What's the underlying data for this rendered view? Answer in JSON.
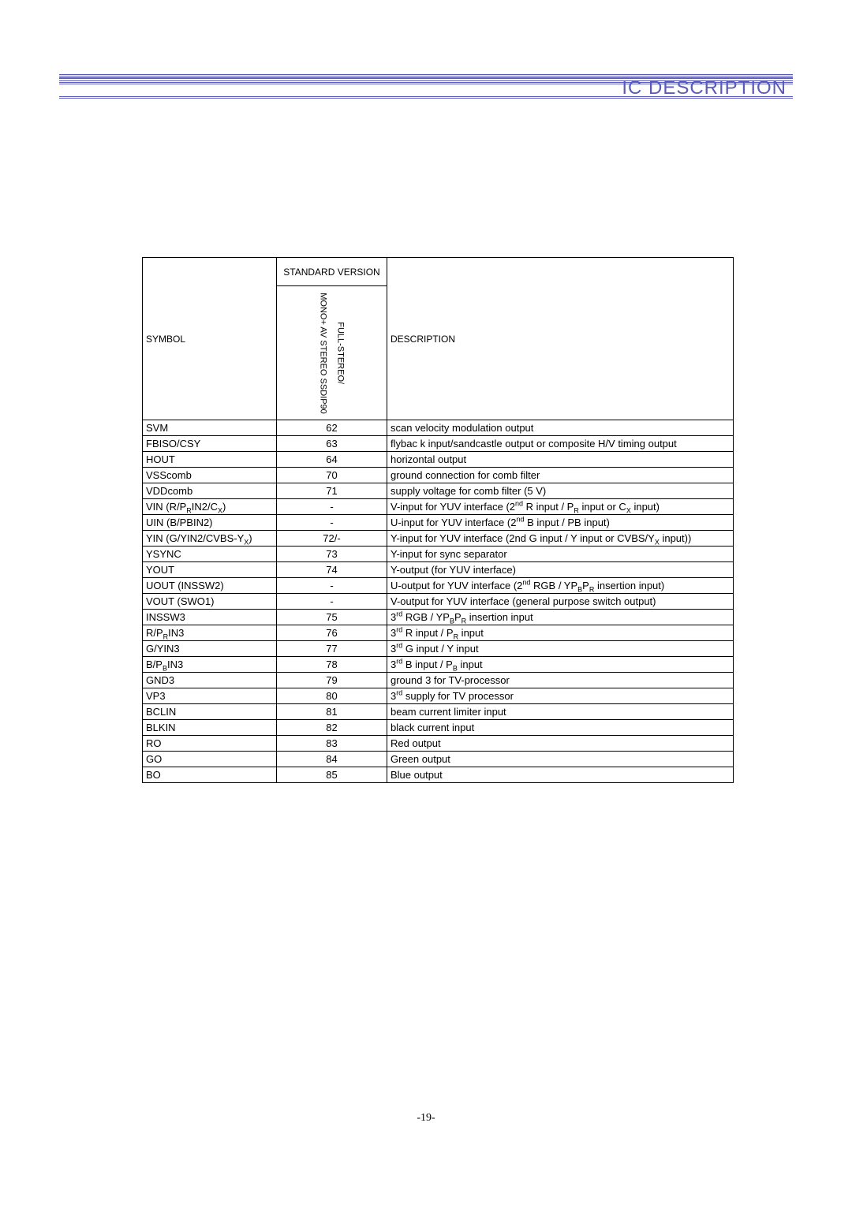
{
  "header": {
    "title": "IC DESCRIPTION",
    "line_color": "#5a5ab8"
  },
  "table": {
    "columns": {
      "symbol": "SYMBOL",
      "standard_version": "STANDARD VERSION",
      "pin_sub": "MONO+ AV STEREO SSDIP90 / FULL-STEREO",
      "pin_sub_a": "MONO+ AV STEREO SSDIP90",
      "pin_sub_b": "FULL-STEREO/",
      "description": "DESCRIPTION"
    },
    "rows": [
      {
        "symbol": "SVM",
        "pin": "62",
        "desc": "scan velocity modulation output"
      },
      {
        "symbol": "FBISO/CSY",
        "pin": "63",
        "desc": "ﬂybac k input/sandcastle output or composite H/V timing output",
        "tall": true
      },
      {
        "symbol": "HOUT",
        "pin": "64",
        "desc": "horizontal output"
      },
      {
        "symbol": "VSScomb",
        "pin": "70",
        "desc": "ground connection for comb ﬁlter"
      },
      {
        "symbol": "VDDcomb",
        "pin": "71",
        "desc": "supply voltage for comb ﬁlter (5 V)"
      },
      {
        "symbol_html": "VIN (R/P<sub>R</sub>IN2/C<sub>X</sub>)",
        "pin": "-",
        "desc_html": "V-input for YUV interface (2<sup>nd</sup> R input / P<sub>R</sub> input or C<sub>X</sub> input)",
        "tall": true
      },
      {
        "symbol": "UIN (B/PBIN2)",
        "pin": "-",
        "desc_html": "U-input for YUV interface (2<sup>nd</sup> B input / PB input)"
      },
      {
        "symbol_html": "YIN (G/YIN2/CVBS-Y<sub>X</sub>)",
        "pin": "72/-",
        "desc_html": "Y-input for YUV interface (2nd G input / Y input or CVBS/Y<sub>X</sub> input))",
        "tall": true
      },
      {
        "symbol": "YSYNC",
        "pin": "73",
        "desc": "Y-input for sync separator"
      },
      {
        "symbol": "YOUT",
        "pin": "74",
        "desc": "Y-output (for YUV interface)"
      },
      {
        "symbol": "UOUT (INSSW2)",
        "pin": "-",
        "desc_html": "U-output for YUV interface (2<sup>nd</sup> RGB / YP<sub>B</sub>P<sub>R</sub> insertion input)",
        "tall": true
      },
      {
        "symbol": "VOUT (SWO1)",
        "pin": "-",
        "desc": "V-output for YUV interface (general purpose switch output)",
        "tall": true
      },
      {
        "symbol": "INSSW3",
        "pin": "75",
        "desc_html": "3<sup>rd</sup> RGB / YP<sub>B</sub>P<sub>R</sub> insertion input"
      },
      {
        "symbol_html": "R/P<sub>R</sub>IN3",
        "pin": "76",
        "desc_html": "3<sup>rd</sup> R input / P<sub>R</sub> input"
      },
      {
        "symbol": "G/YIN3",
        "pin": "77",
        "desc_html": "3<sup>rd</sup> G input / Y input"
      },
      {
        "symbol_html": "B/P<sub>B</sub>IN3",
        "pin": "78",
        "desc_html": "3<sup>rd</sup> B input / P<sub>B</sub> input"
      },
      {
        "symbol": "GND3",
        "pin": "79",
        "desc": "ground 3 for TV-processor"
      },
      {
        "symbol": "VP3",
        "pin": "80",
        "desc_html": "3<sup>rd</sup> supply for TV processor"
      },
      {
        "symbol": "BCLIN",
        "pin": "81",
        "desc": "beam current limiter input"
      },
      {
        "symbol": "BLKIN",
        "pin": "82",
        "desc": "black current input"
      },
      {
        "symbol": "RO",
        "pin": "83",
        "desc": "Red output"
      },
      {
        "symbol": "GO",
        "pin": "84",
        "desc": "Green output"
      },
      {
        "symbol": "BO",
        "pin": "85",
        "desc": "Blue output"
      }
    ]
  },
  "page_number": "-19-",
  "colors": {
    "header_line": "#5a5ab8",
    "text": "#000000",
    "background": "#ffffff",
    "border": "#000000"
  },
  "typography": {
    "body_fontsize": 13,
    "header_fontsize": 24,
    "th_fontsize": 12
  }
}
